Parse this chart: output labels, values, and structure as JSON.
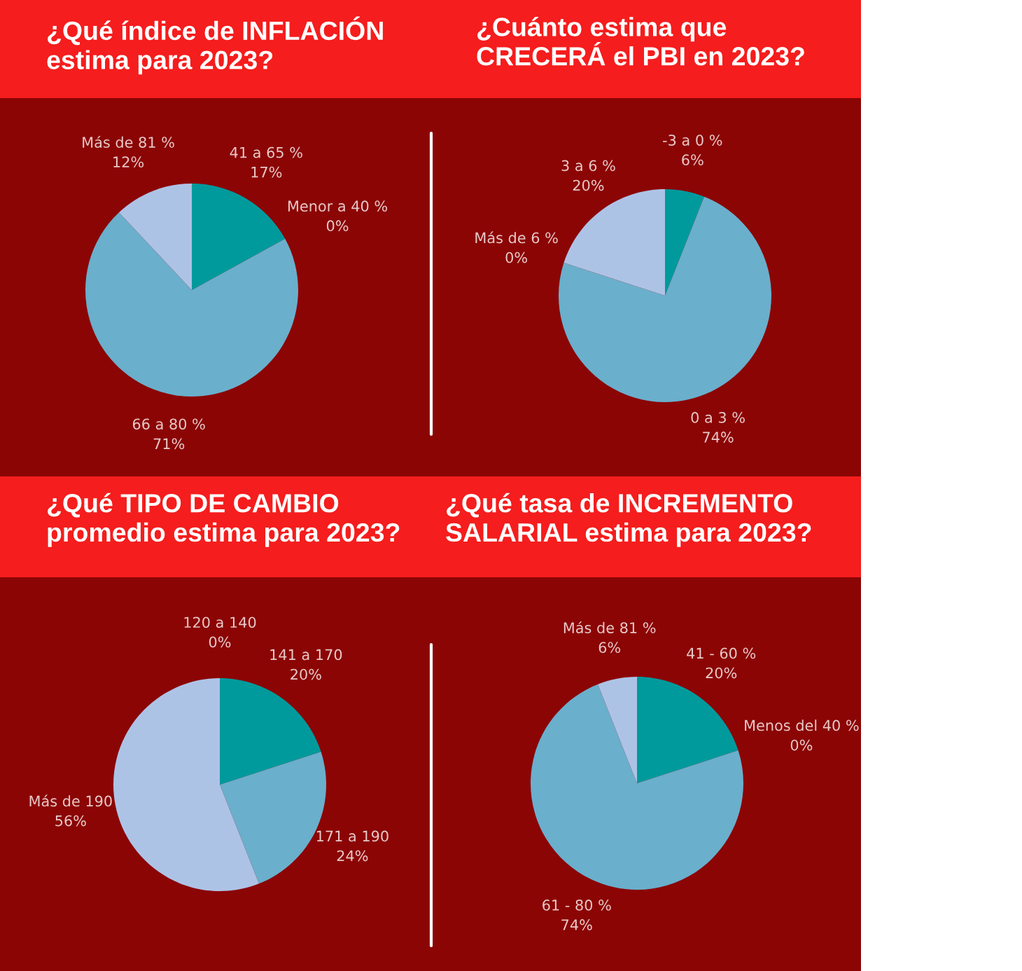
{
  "chart_data": [
    {
      "type": "pie",
      "title": "¿Qué índice de INFLACIÓN\nestima para 2023?",
      "categories": [
        "41 a 65 %",
        "Menor a 40 %",
        "66 a 80 %",
        "Más de 81 %"
      ],
      "values": [
        17,
        0,
        71,
        12
      ],
      "value_labels": [
        "17%",
        "0%",
        "71%",
        "12%"
      ],
      "colors": [
        "#009a9c",
        "#4a90b8",
        "#6aafcc",
        "#adc3e6"
      ]
    },
    {
      "type": "pie",
      "title": "¿Cuánto estima que\nCRECERÁ el PBI en 2023?",
      "categories": [
        "-3 a 0 %",
        "0 a 3 %",
        "Más de 6 %",
        "3 a 6 %"
      ],
      "values": [
        6,
        74,
        0,
        20
      ],
      "value_labels": [
        "6%",
        "74%",
        "0%",
        "20%"
      ],
      "colors": [
        "#009a9c",
        "#6aafcc",
        "#4a90b8",
        "#adc3e6"
      ]
    },
    {
      "type": "pie",
      "title": "¿Qué TIPO DE CAMBIO\npromedio estima para 2023?",
      "categories": [
        "141 a 170",
        "171 a 190",
        "Más de 190",
        "120 a 140"
      ],
      "values": [
        20,
        24,
        56,
        0
      ],
      "value_labels": [
        "20%",
        "24%",
        "56%",
        "0%"
      ],
      "colors": [
        "#009a9c",
        "#6aafcc",
        "#adc3e6",
        "#4a90b8"
      ]
    },
    {
      "type": "pie",
      "title": "¿Qué tasa de INCREMENTO\nSALARIAL estima para 2023?",
      "categories": [
        "41 - 60 %",
        "Menos del 40 %",
        "61 - 80 %",
        "Más de 81 %"
      ],
      "values": [
        20,
        0,
        74,
        6
      ],
      "value_labels": [
        "20%",
        "0%",
        "74%",
        "6%"
      ],
      "colors": [
        "#009a9c",
        "#4a90b8",
        "#6aafcc",
        "#adc3e6"
      ]
    }
  ]
}
